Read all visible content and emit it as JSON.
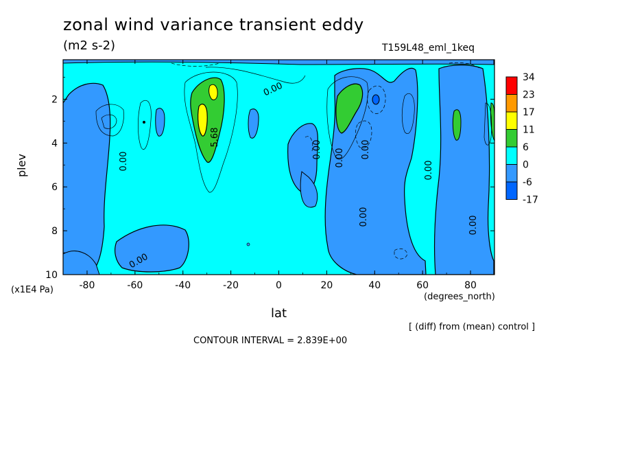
{
  "chart_data": {
    "type": "heatmap",
    "title": "zonal wind variance transient eddy",
    "units": "(m2 s-2)",
    "run_label": "T159L48_eml_1keq",
    "xlabel": "lat",
    "x_units": "(degrees_north)",
    "ylabel": "plev",
    "y_units": "(x1E4 Pa)",
    "x_ticks": [
      -80,
      -60,
      -40,
      -20,
      0,
      20,
      40,
      60,
      80
    ],
    "x_tick_labels": [
      "-80",
      "-60",
      "-40",
      "-20",
      "0",
      "20",
      "40",
      "60",
      "80"
    ],
    "xlim": [
      -90,
      90
    ],
    "y_ticks": [
      2,
      4,
      6,
      8,
      10
    ],
    "y_tick_labels": [
      "2",
      "4",
      "6",
      "8",
      "10"
    ],
    "ylim": [
      10,
      0.2
    ],
    "colorbar": {
      "levels": [
        "34",
        "23",
        "17",
        "11",
        "6",
        "0",
        "-6",
        "-17"
      ],
      "colors": [
        "#ff0000",
        "#ff9900",
        "#ffff00",
        "#33cc33",
        "#00ffff",
        "#3399ff",
        "#0066ff"
      ]
    },
    "contour_labels": [
      "0.00",
      "5.68"
    ],
    "note": "[ (diff) from (mean) control ]",
    "contour_interval": "CONTOUR INTERVAL = 2.839E+00",
    "regions": [
      {
        "level": "blue",
        "lat": [
          -86,
          -74
        ],
        "plev": [
          1.2,
          9.8
        ]
      },
      {
        "level": "blue",
        "lat": [
          -55,
          -51
        ],
        "plev": [
          2.4,
          4.1
        ]
      },
      {
        "level": "green",
        "lat": [
          -36,
          -26
        ],
        "plev": [
          1.0,
          5.0
        ]
      },
      {
        "level": "yellow",
        "lat": [
          -33,
          -30
        ],
        "plev": [
          2.2,
          3.6
        ]
      },
      {
        "level": "blue",
        "lat": [
          -10,
          -6
        ],
        "plev": [
          2.4,
          3.8
        ]
      },
      {
        "level": "blue",
        "lat": [
          5,
          17
        ],
        "plev": [
          3.2,
          7.0
        ]
      },
      {
        "level": "blue",
        "lat": [
          20,
          88
        ],
        "plev": [
          0.6,
          9.8
        ]
      },
      {
        "level": "green",
        "lat": [
          25,
          35
        ],
        "plev": [
          1.2,
          3.7
        ]
      },
      {
        "level": "navy",
        "lat": [
          39,
          41
        ],
        "plev": [
          1.8,
          2.2
        ]
      },
      {
        "level": "green",
        "lat": [
          73,
          76
        ],
        "plev": [
          2.6,
          4.0
        ]
      },
      {
        "level": "cyan",
        "lat": [
          56,
          66
        ],
        "plev": [
          0.4,
          10.0
        ]
      }
    ]
  }
}
